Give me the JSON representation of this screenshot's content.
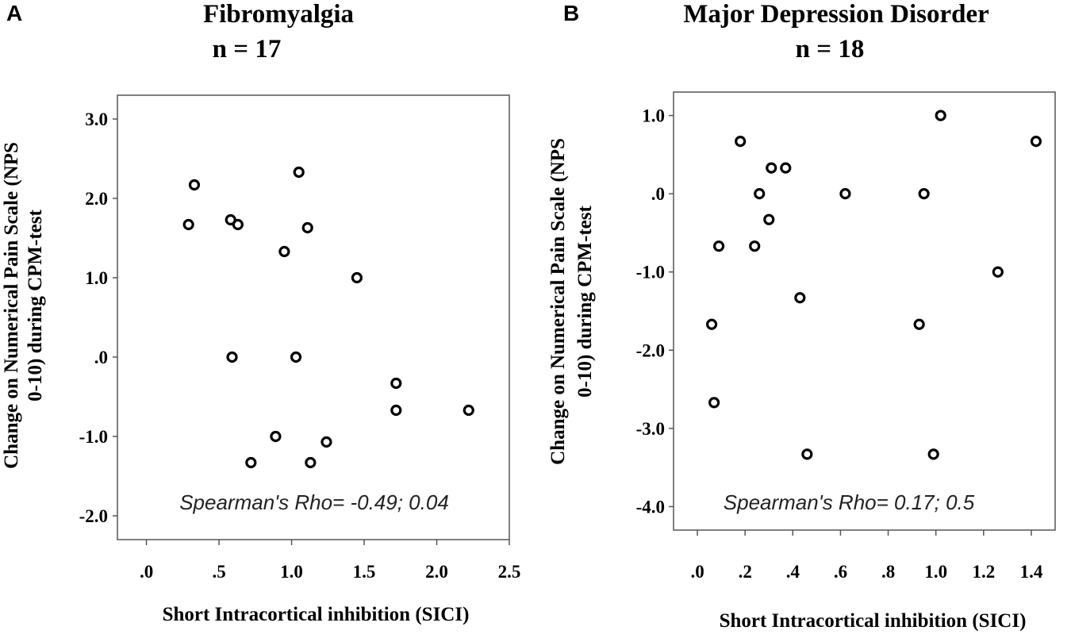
{
  "chart_data": [
    {
      "type": "scatter",
      "panel": "A",
      "title": "Fibromyalgia",
      "subtitle": "n = 17",
      "xlabel": "Short Intracortical inhibition (SICI)",
      "ylabel_line1": "Change on Numerical Pain Scale (NPS",
      "ylabel_line2": "0-10) during CPM-test",
      "annotation": "Spearman's Rho= -0.49; 0.04",
      "xlim": [
        -0.2,
        2.5
      ],
      "ylim": [
        -2.3,
        3.3
      ],
      "xticks": [
        0,
        0.5,
        1.0,
        1.5,
        2.0,
        2.5
      ],
      "xtick_labels": [
        ".0",
        ".5",
        "1.0",
        "1.5",
        "2.0",
        "2.5"
      ],
      "yticks": [
        3.0,
        2.0,
        1.0,
        0,
        -1.0,
        -2.0
      ],
      "ytick_labels": [
        "3.0",
        "2.0",
        "1.0",
        ".0",
        "-1.0",
        "-2.0"
      ],
      "points": [
        {
          "x": 0.29,
          "y": 1.67
        },
        {
          "x": 0.33,
          "y": 2.17
        },
        {
          "x": 0.58,
          "y": 1.73
        },
        {
          "x": 0.63,
          "y": 1.67
        },
        {
          "x": 0.59,
          "y": 0.0
        },
        {
          "x": 0.72,
          "y": -1.33
        },
        {
          "x": 0.89,
          "y": -1.0
        },
        {
          "x": 0.95,
          "y": 1.33
        },
        {
          "x": 1.03,
          "y": 0.0
        },
        {
          "x": 1.05,
          "y": 2.33
        },
        {
          "x": 1.11,
          "y": 1.63
        },
        {
          "x": 1.13,
          "y": -1.33
        },
        {
          "x": 1.24,
          "y": -1.07
        },
        {
          "x": 1.45,
          "y": 1.0
        },
        {
          "x": 1.72,
          "y": -0.33
        },
        {
          "x": 1.72,
          "y": -0.67
        },
        {
          "x": 2.22,
          "y": -0.67
        }
      ]
    },
    {
      "type": "scatter",
      "panel": "B",
      "title": "Major Depression Disorder",
      "subtitle": "n = 18",
      "xlabel": "Short Intracortical inhibition (SICI)",
      "ylabel_line1": "Change on Numerical Pain Scale (NPS",
      "ylabel_line2": "0-10) during CPM-test",
      "annotation": "Spearman's Rho= 0.17; 0.5",
      "xlim": [
        -0.1,
        1.5
      ],
      "ylim": [
        -4.3,
        1.3
      ],
      "xticks": [
        0,
        0.2,
        0.4,
        0.6,
        0.8,
        1.0,
        1.2,
        1.4
      ],
      "xtick_labels": [
        ".0",
        ".2",
        ".4",
        ".6",
        ".8",
        "1.0",
        "1.2",
        "1.4"
      ],
      "yticks": [
        1.0,
        0,
        -1.0,
        -2.0,
        -3.0,
        -4.0
      ],
      "ytick_labels": [
        "1.0",
        ".0",
        "-1.0",
        "-2.0",
        "-3.0",
        "-4.0"
      ],
      "points": [
        {
          "x": 0.06,
          "y": -1.67
        },
        {
          "x": 0.07,
          "y": -2.67
        },
        {
          "x": 0.09,
          "y": -0.67
        },
        {
          "x": 0.18,
          "y": 0.67
        },
        {
          "x": 0.24,
          "y": -0.67
        },
        {
          "x": 0.26,
          "y": 0.0
        },
        {
          "x": 0.3,
          "y": -0.33
        },
        {
          "x": 0.31,
          "y": 0.33
        },
        {
          "x": 0.37,
          "y": 0.33
        },
        {
          "x": 0.43,
          "y": -1.33
        },
        {
          "x": 0.46,
          "y": -3.33
        },
        {
          "x": 0.62,
          "y": 0.0
        },
        {
          "x": 0.93,
          "y": -1.67
        },
        {
          "x": 0.95,
          "y": 0.0
        },
        {
          "x": 0.99,
          "y": -3.33
        },
        {
          "x": 1.02,
          "y": 1.0
        },
        {
          "x": 1.26,
          "y": -1.0
        },
        {
          "x": 1.42,
          "y": 0.67
        }
      ]
    }
  ]
}
